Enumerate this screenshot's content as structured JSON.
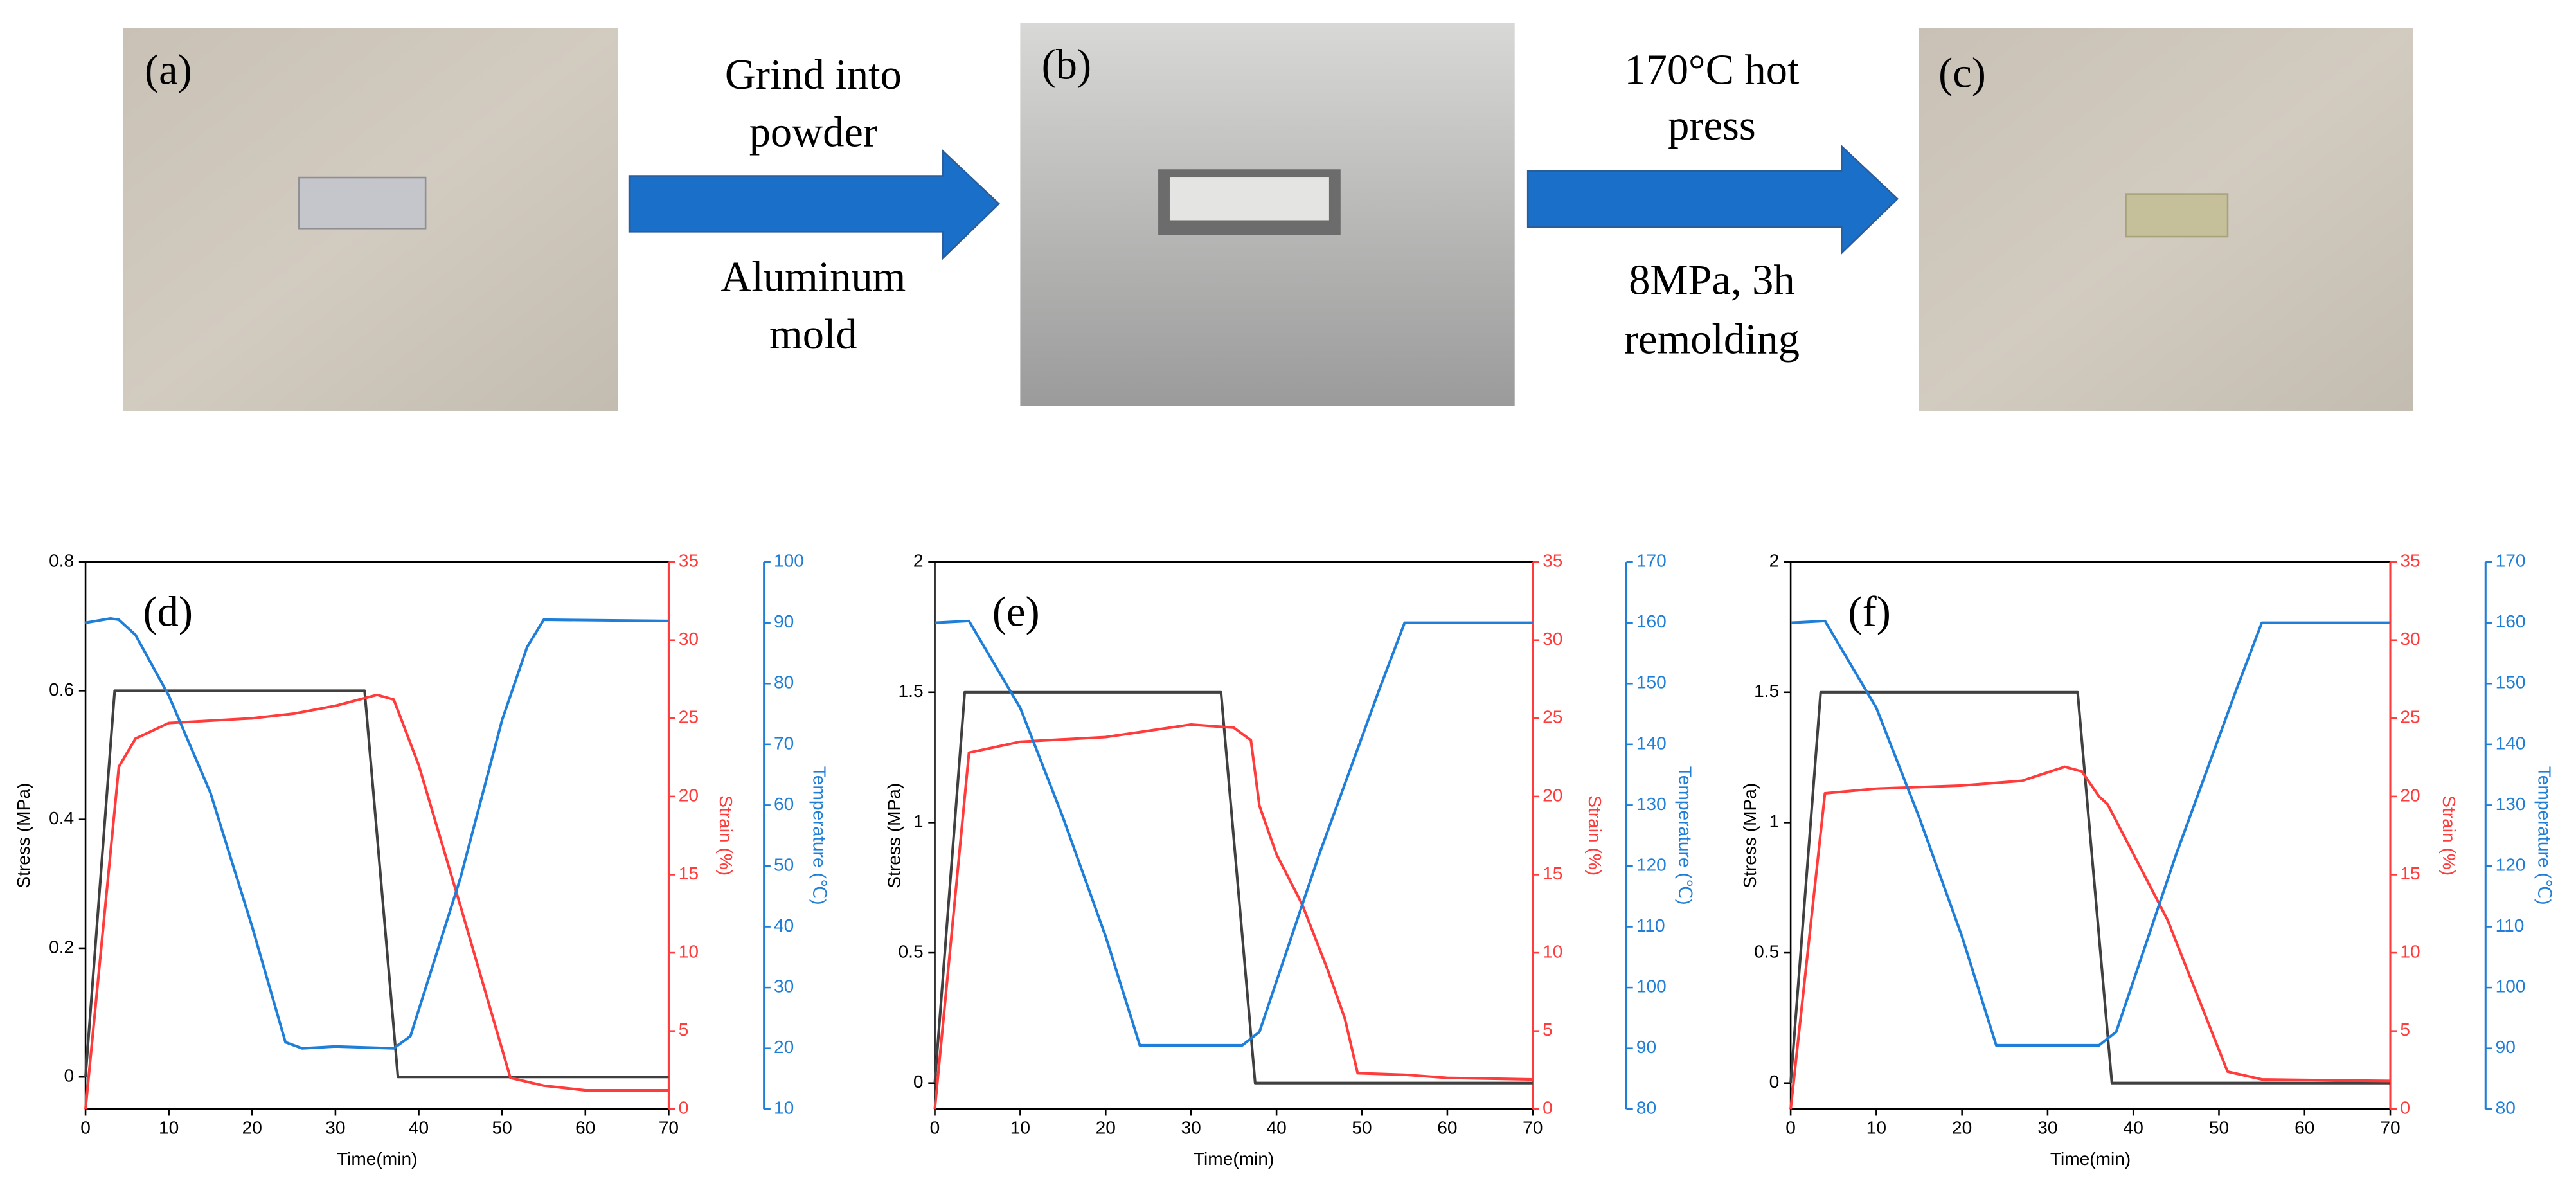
{
  "photos": [
    {
      "label": "(a)"
    },
    {
      "label": "(b)"
    },
    {
      "label": "(c)"
    }
  ],
  "arrows": [
    {
      "top": [
        "Grind into",
        "powder"
      ],
      "bottom": [
        "Aluminum",
        "mold"
      ]
    },
    {
      "top": [
        "170°C hot",
        "press"
      ],
      "bottom": [
        "8MPa, 3h",
        "remolding"
      ]
    }
  ],
  "chart_data": [
    {
      "type": "line",
      "panel_label": "(d)",
      "x_label": "Time(min)",
      "y_label": "Stress (MPa)",
      "y2_label": "Strain (%)",
      "y3_label": "Temperature (℃)",
      "xlim": [
        0,
        70
      ],
      "xticks": [
        0,
        10,
        20,
        30,
        40,
        50,
        60,
        70
      ],
      "ylim": [
        -0.05,
        0.8
      ],
      "yticks": [
        0,
        0.2,
        0.4,
        0.6,
        0.8
      ],
      "y2lim": [
        0,
        35
      ],
      "y2ticks": [
        0,
        5,
        10,
        15,
        20,
        25,
        30,
        35
      ],
      "y2_color": "#ff3b3b",
      "y3lim": [
        10,
        100
      ],
      "y3ticks": [
        10,
        20,
        30,
        40,
        50,
        60,
        70,
        80,
        90,
        100
      ],
      "y3_color": "#1f7fd8",
      "series": [
        {
          "name": "Stress",
          "color": "#404040",
          "axis": "y",
          "x": [
            0,
            3.5,
            33.5,
            37.5,
            70
          ],
          "values": [
            0,
            0.6,
            0.6,
            0,
            0
          ]
        },
        {
          "name": "Strain",
          "color": "#ff3b3b",
          "axis": "y2",
          "x": [
            0,
            4,
            6,
            10,
            20,
            25,
            30,
            35,
            37,
            40,
            45,
            51,
            55,
            60,
            70
          ],
          "values": [
            0,
            21.9,
            23.7,
            24.7,
            25.0,
            25.3,
            25.8,
            26.5,
            26.2,
            22,
            13,
            2,
            1.5,
            1.2,
            1.2
          ]
        },
        {
          "name": "Temperature",
          "color": "#1f7fd8",
          "axis": "y3",
          "x": [
            0,
            3,
            4,
            6,
            10,
            15,
            20,
            24,
            26,
            30,
            37,
            39,
            45,
            50,
            53,
            55,
            70
          ],
          "values": [
            90,
            90.7,
            90.5,
            88,
            78,
            62,
            40,
            21,
            20,
            20.3,
            20,
            22,
            48,
            74,
            86,
            90.5,
            90.3
          ]
        }
      ]
    },
    {
      "type": "line",
      "panel_label": "(e)",
      "x_label": "Time(min)",
      "y_label": "Stress (MPa)",
      "y2_label": "Strain (%)",
      "y3_label": "Temperature (℃)",
      "xlim": [
        0,
        70
      ],
      "xticks": [
        0,
        10,
        20,
        30,
        40,
        50,
        60,
        70
      ],
      "ylim": [
        -0.1,
        2
      ],
      "yticks": [
        0,
        0.5,
        1,
        1.5,
        2
      ],
      "y2lim": [
        0,
        35
      ],
      "y2ticks": [
        0,
        5,
        10,
        15,
        20,
        25,
        30,
        35
      ],
      "y2_color": "#ff3b3b",
      "y3lim": [
        80,
        170
      ],
      "y3ticks": [
        80,
        90,
        100,
        110,
        120,
        130,
        140,
        150,
        160,
        170
      ],
      "y3_color": "#1f7fd8",
      "series": [
        {
          "name": "Stress",
          "color": "#404040",
          "axis": "y",
          "x": [
            0,
            3.5,
            33.5,
            37.5,
            70
          ],
          "values": [
            0,
            1.5,
            1.5,
            0,
            0
          ]
        },
        {
          "name": "Strain",
          "color": "#ff3b3b",
          "axis": "y2",
          "x": [
            0,
            4,
            10,
            20,
            30,
            35,
            37,
            38,
            40,
            43,
            46,
            48,
            49.5,
            55,
            60,
            70
          ],
          "values": [
            0,
            22.8,
            23.5,
            23.8,
            24.6,
            24.4,
            23.6,
            19.4,
            16.3,
            13.1,
            8.9,
            5.8,
            2.3,
            2.2,
            2,
            1.9
          ]
        },
        {
          "name": "Temperature",
          "color": "#1f7fd8",
          "axis": "y3",
          "x": [
            0,
            4,
            10,
            15,
            20,
            24,
            30,
            36,
            38,
            45,
            52,
            55,
            70
          ],
          "values": [
            160,
            160.3,
            146,
            128,
            108.4,
            90.5,
            90.5,
            90.5,
            92.7,
            121.9,
            148.9,
            160,
            160
          ]
        }
      ]
    },
    {
      "type": "line",
      "panel_label": "(f)",
      "x_label": "Time(min)",
      "y_label": "Stress (MPa)",
      "y2_label": "Strain (%)",
      "y3_label": "Temperature (℃)",
      "xlim": [
        0,
        70
      ],
      "xticks": [
        0,
        10,
        20,
        30,
        40,
        50,
        60,
        70
      ],
      "ylim": [
        -0.1,
        2
      ],
      "yticks": [
        0,
        0.5,
        1,
        1.5,
        2
      ],
      "y2lim": [
        0,
        35
      ],
      "y2ticks": [
        0,
        5,
        10,
        15,
        20,
        25,
        30,
        35
      ],
      "y2_color": "#ff3b3b",
      "y3lim": [
        80,
        170
      ],
      "y3ticks": [
        80,
        90,
        100,
        110,
        120,
        130,
        140,
        150,
        160,
        170
      ],
      "y3_color": "#1f7fd8",
      "series": [
        {
          "name": "Stress",
          "color": "#404040",
          "axis": "y",
          "x": [
            0,
            3.5,
            33.5,
            37.5,
            70
          ],
          "values": [
            0,
            1.5,
            1.5,
            0,
            0
          ]
        },
        {
          "name": "Strain",
          "color": "#ff3b3b",
          "axis": "y2",
          "x": [
            0,
            4,
            10,
            20,
            27,
            32,
            34,
            36,
            37,
            44,
            51,
            55,
            70
          ],
          "values": [
            0,
            20.2,
            20.5,
            20.7,
            21,
            21.9,
            21.6,
            20,
            19.5,
            12.1,
            2.4,
            1.9,
            1.8
          ]
        },
        {
          "name": "Temperature",
          "color": "#1f7fd8",
          "axis": "y3",
          "x": [
            0,
            4,
            10,
            15,
            20,
            24,
            30,
            36,
            38,
            45,
            52,
            55,
            70
          ],
          "values": [
            160,
            160.3,
            146,
            128,
            108.4,
            90.5,
            90.5,
            90.5,
            92.7,
            121.9,
            148.9,
            160,
            160
          ]
        }
      ]
    }
  ]
}
